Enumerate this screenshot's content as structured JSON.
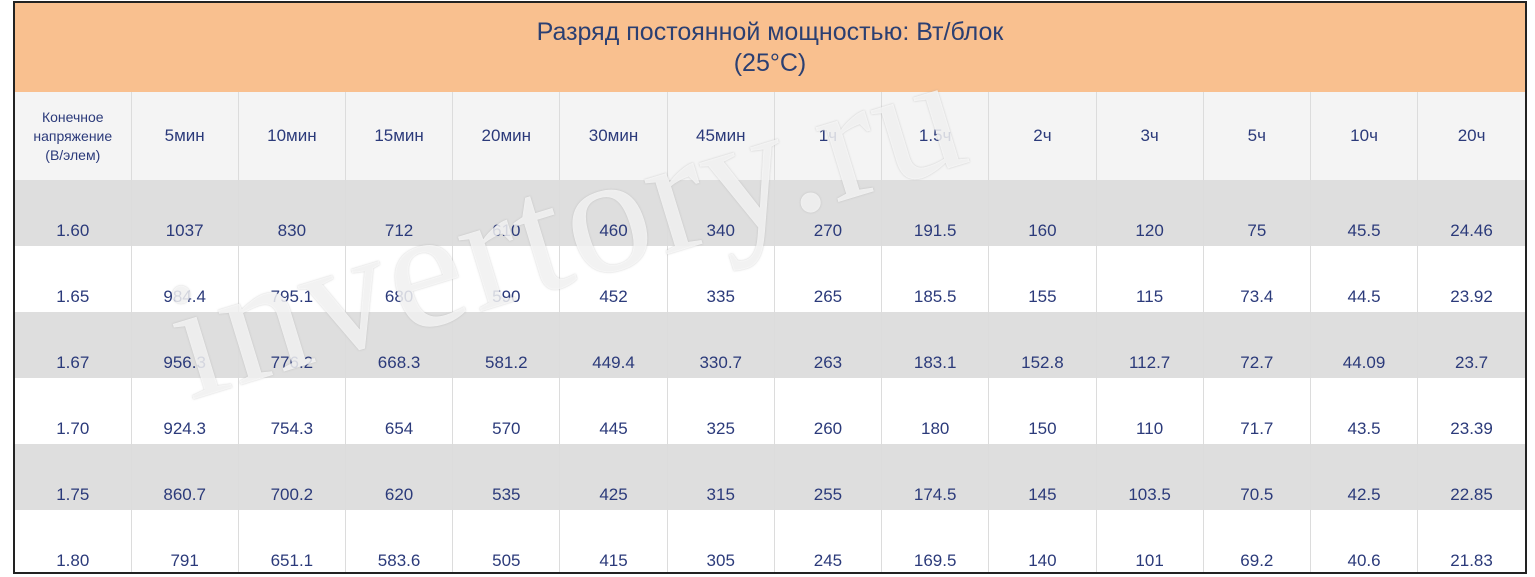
{
  "title": {
    "line1": "Разряд постоянной мощностью: Вт/блок",
    "line2": "(25°C)"
  },
  "table": {
    "first_header": [
      "Конечное",
      "напряжение",
      "(В/элем)"
    ],
    "columns": [
      "5мин",
      "10мин",
      "15мин",
      "20мин",
      "30мин",
      "45мин",
      "1ч",
      "1.5ч",
      "2ч",
      "3ч",
      "5ч",
      "10ч",
      "20ч"
    ],
    "rows": [
      {
        "voltage": "1.60",
        "values": [
          "1037",
          "830",
          "712",
          "610",
          "460",
          "340",
          "270",
          "191.5",
          "160",
          "120",
          "75",
          "45.5",
          "24.46"
        ]
      },
      {
        "voltage": "1.65",
        "values": [
          "984.4",
          "795.1",
          "680",
          "590",
          "452",
          "335",
          "265",
          "185.5",
          "155",
          "115",
          "73.4",
          "44.5",
          "23.92"
        ]
      },
      {
        "voltage": "1.67",
        "values": [
          "956.3",
          "776.2",
          "668.3",
          "581.2",
          "449.4",
          "330.7",
          "263",
          "183.1",
          "152.8",
          "112.7",
          "72.7",
          "44.09",
          "23.7"
        ]
      },
      {
        "voltage": "1.70",
        "values": [
          "924.3",
          "754.3",
          "654",
          "570",
          "445",
          "325",
          "260",
          "180",
          "150",
          "110",
          "71.7",
          "43.5",
          "23.39"
        ]
      },
      {
        "voltage": "1.75",
        "values": [
          "860.7",
          "700.2",
          "620",
          "535",
          "425",
          "315",
          "255",
          "174.5",
          "145",
          "103.5",
          "70.5",
          "42.5",
          "22.85"
        ]
      },
      {
        "voltage": "1.80",
        "values": [
          "791",
          "651.1",
          "583.6",
          "505",
          "415",
          "305",
          "245",
          "169.5",
          "140",
          "101",
          "69.2",
          "40.6",
          "21.83"
        ]
      }
    ]
  },
  "watermark": "invertory.ru",
  "colors": {
    "header_bg": "#f9c08f",
    "text": "#2b3a7a",
    "shade_row": "#dedede"
  }
}
